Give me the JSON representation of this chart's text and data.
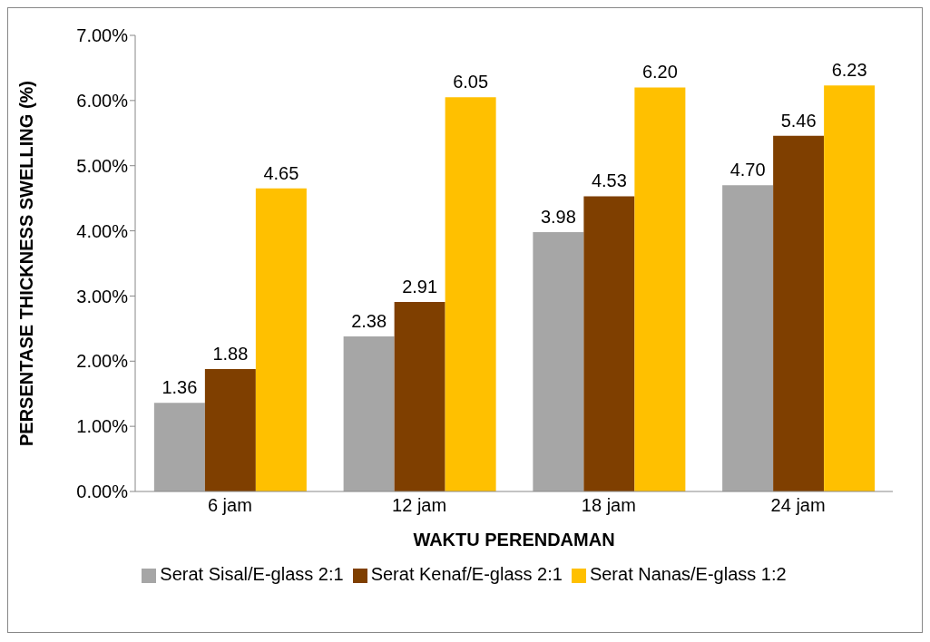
{
  "chart_data": {
    "type": "bar",
    "xlabel": "WAKTU PERENDAMAN",
    "ylabel": "PERSENTASE THICKNESS SWELLING (%)",
    "categories": [
      "6 jam",
      "12 jam",
      "18 jam",
      "24 jam"
    ],
    "series": [
      {
        "name": "Serat Sisal/E-glass 2:1",
        "color": "#a6a6a6",
        "values": [
          1.36,
          2.38,
          3.98,
          4.7
        ],
        "value_labels": [
          "1.36",
          "2.38",
          "3.98",
          "4.70"
        ]
      },
      {
        "name": "Serat Kenaf/E-glass 2:1",
        "color": "#7f3f00",
        "values": [
          1.88,
          2.91,
          4.53,
          5.46
        ],
        "value_labels": [
          "1.88",
          "2.91",
          "4.53",
          "5.46"
        ]
      },
      {
        "name": "Serat Nanas/E-glass 1:2",
        "color": "#ffc000",
        "values": [
          4.65,
          6.05,
          6.2,
          6.23
        ],
        "value_labels": [
          "4.65",
          "6.05",
          "6.20",
          "6.23"
        ]
      }
    ],
    "ylim": [
      0,
      7
    ],
    "yticks": [
      {
        "value": 0,
        "label": "0.00%"
      },
      {
        "value": 1,
        "label": "1.00%"
      },
      {
        "value": 2,
        "label": "2.00%"
      },
      {
        "value": 3,
        "label": "3.00%"
      },
      {
        "value": 4,
        "label": "4.00%"
      },
      {
        "value": 5,
        "label": "5.00%"
      },
      {
        "value": 6,
        "label": "6.00%"
      },
      {
        "value": 7,
        "label": "7.00%"
      }
    ],
    "grid": false,
    "legend": "bottom"
  }
}
